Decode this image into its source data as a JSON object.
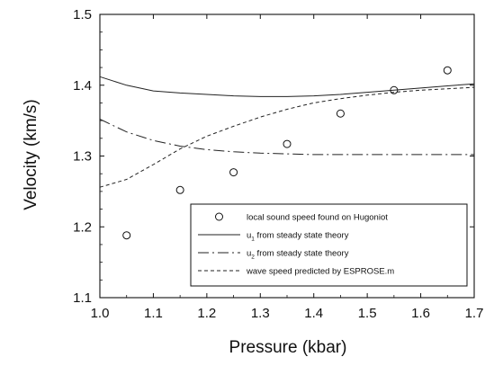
{
  "chart_data": {
    "type": "line",
    "xlabel": "Pressure (kbar)",
    "ylabel": "Velocity (km/s)",
    "xlim": [
      1.0,
      1.7
    ],
    "ylim": [
      1.1,
      1.5
    ],
    "x_ticks": [
      "1.0",
      "1.1",
      "1.2",
      "1.3",
      "1.4",
      "1.5",
      "1.6",
      "1.7"
    ],
    "y_ticks": [
      "1.1",
      "1.2",
      "1.3",
      "1.4",
      "1.5"
    ],
    "grid": false,
    "legend_position": "bottom-right",
    "series": [
      {
        "name": "local sound speed found on Hugoniot",
        "style": "open-circle",
        "x": [
          1.05,
          1.15,
          1.25,
          1.35,
          1.45,
          1.55,
          1.65
        ],
        "y": [
          1.188,
          1.252,
          1.277,
          1.317,
          1.36,
          1.393,
          1.421
        ]
      },
      {
        "name_main": "u",
        "name_sub": "1",
        "name_rest": " from steady state theory",
        "style": "solid",
        "x": [
          1.0,
          1.05,
          1.1,
          1.15,
          1.2,
          1.25,
          1.3,
          1.35,
          1.4,
          1.45,
          1.5,
          1.55,
          1.6,
          1.65,
          1.7
        ],
        "y": [
          1.412,
          1.4,
          1.392,
          1.389,
          1.387,
          1.385,
          1.384,
          1.384,
          1.385,
          1.387,
          1.39,
          1.393,
          1.396,
          1.399,
          1.402
        ]
      },
      {
        "name_main": "u",
        "name_sub": "2",
        "name_rest": " from steady state theory",
        "style": "dash-dot",
        "x": [
          1.0,
          1.05,
          1.1,
          1.15,
          1.2,
          1.25,
          1.3,
          1.35,
          1.4,
          1.45,
          1.5,
          1.55,
          1.6,
          1.65,
          1.7
        ],
        "y": [
          1.352,
          1.334,
          1.322,
          1.314,
          1.309,
          1.306,
          1.304,
          1.303,
          1.302,
          1.302,
          1.302,
          1.302,
          1.302,
          1.302,
          1.302
        ]
      },
      {
        "name": "wave speed predicted by ESPROSE.m",
        "style": "dashed",
        "x": [
          1.0,
          1.05,
          1.1,
          1.15,
          1.2,
          1.25,
          1.3,
          1.35,
          1.4,
          1.45,
          1.5,
          1.55,
          1.6,
          1.65,
          1.7
        ],
        "y": [
          1.256,
          1.267,
          1.288,
          1.31,
          1.328,
          1.342,
          1.355,
          1.366,
          1.375,
          1.381,
          1.386,
          1.39,
          1.393,
          1.395,
          1.397
        ]
      }
    ]
  }
}
